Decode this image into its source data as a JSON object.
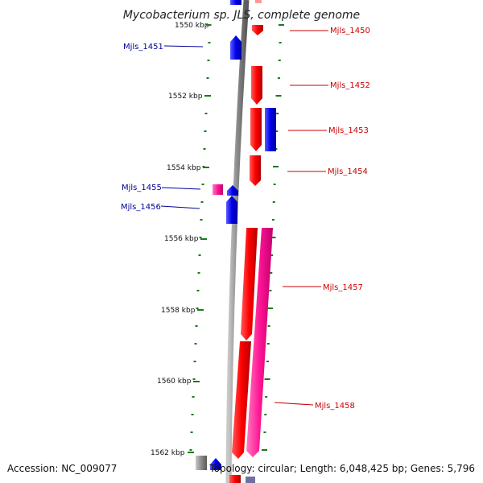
{
  "title": "Mycobacterium sp. JLS, complete genome",
  "accession": "Accession: NC_009077",
  "summary": "Topology: circular; Length: 6,048,425 bp; Genes: 5,796",
  "colors": {
    "forward_gene": "#ff0000",
    "reverse_gene": "#0000ee",
    "pink_gene": "#ff1493",
    "tick": "#1a7a1a",
    "backbone": "#8a8a8a",
    "label_forward": "#cc0000",
    "label_reverse": "#000099"
  },
  "ticks": [
    {
      "label": "1550 kbp"
    },
    {
      "label": "1552 kbp"
    },
    {
      "label": "1554 kbp"
    },
    {
      "label": "1556 kbp"
    },
    {
      "label": "1558 kbp"
    },
    {
      "label": "1560 kbp"
    },
    {
      "label": "1562 kbp"
    }
  ],
  "genes": [
    {
      "id": "Mjls_1450",
      "color": "red"
    },
    {
      "id": "Mjls_1451",
      "color": "blue"
    },
    {
      "id": "Mjls_1452",
      "color": "red"
    },
    {
      "id": "Mjls_1453",
      "color": "red"
    },
    {
      "id": "Mjls_1454",
      "color": "red"
    },
    {
      "id": "Mjls_1455",
      "color": "pink"
    },
    {
      "id": "Mjls_1456",
      "color": "blue"
    },
    {
      "id": "Mjls_1457",
      "color": "red"
    },
    {
      "id": "Mjls_1458",
      "color": "pink"
    }
  ]
}
